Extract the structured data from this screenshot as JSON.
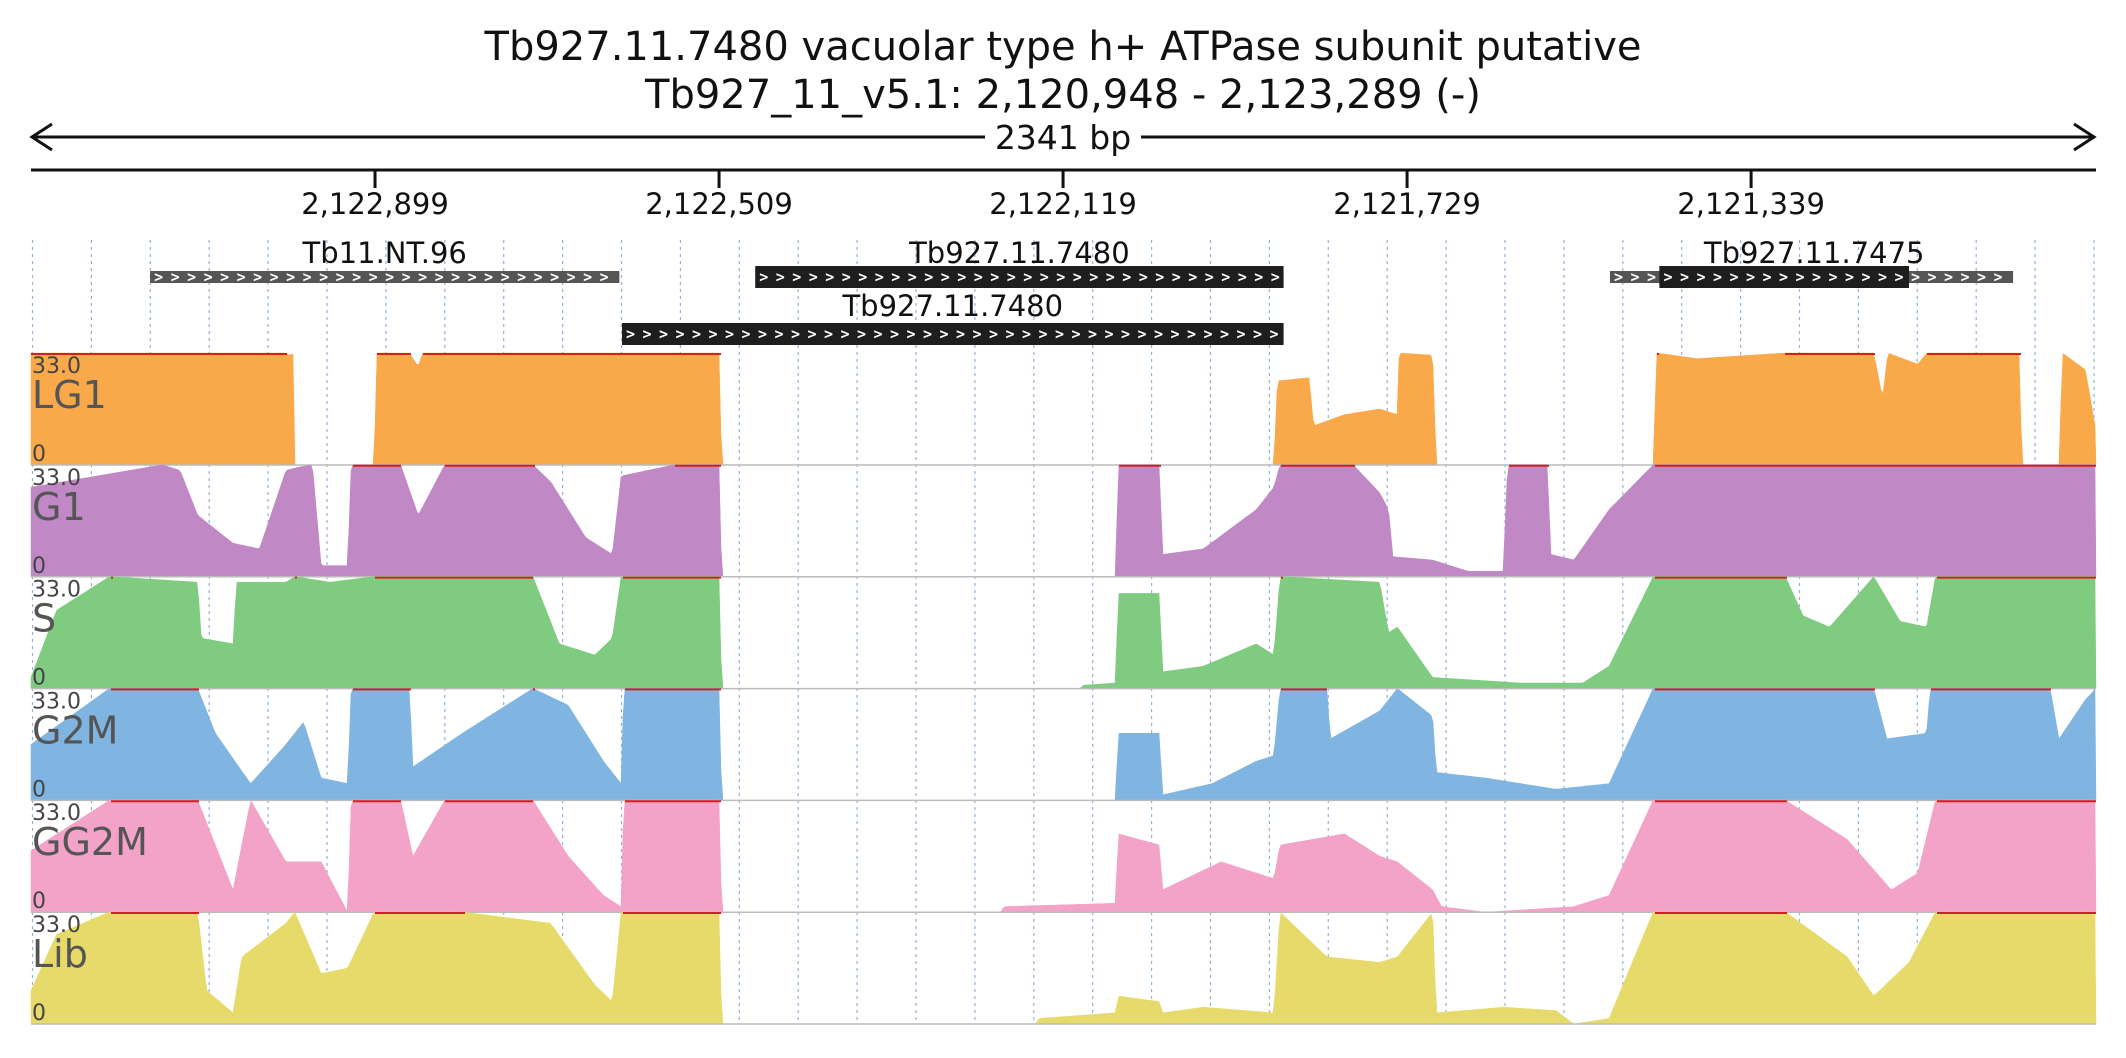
{
  "title": {
    "line1": "Tb927.11.7480  vacuolar type h+ ATPase subunit  putative",
    "line2": "Tb927_11_v5.1: 2,120,948 - 2,123,289 (-)"
  },
  "scale": {
    "label": "2341 bp"
  },
  "axis": {
    "start": 2123289,
    "end": 2120948,
    "ticks": [
      {
        "pos": 2122899,
        "label": "2,122,899"
      },
      {
        "pos": 2122509,
        "label": "2,122,509"
      },
      {
        "pos": 2122119,
        "label": "2,122,119"
      },
      {
        "pos": 2121729,
        "label": "2,121,729"
      },
      {
        "pos": 2121339,
        "label": "2,121,339"
      }
    ]
  },
  "genes": [
    {
      "id": "g1",
      "label": "Tb11.NT.96",
      "row": 0,
      "style": "ncrna",
      "start": 2123154,
      "end": 2122622
    },
    {
      "id": "g2",
      "label": "Tb927.11.7480",
      "row": 0,
      "style": "cds",
      "start": 2122468,
      "end": 2121869
    },
    {
      "id": "g3",
      "label": "Tb927.11.7480",
      "row": 1,
      "style": "cds",
      "start": 2122619,
      "end": 2121869
    },
    {
      "id": "g4",
      "label": "Tb927.11.7475",
      "row": 0,
      "style": "utr",
      "start": 2121499,
      "end": 2121042,
      "core_start": 2121443,
      "core_end": 2121160
    }
  ],
  "tracks": [
    {
      "name": "LG1",
      "color": "#f9a94a",
      "max": "33.0",
      "min": "0",
      "profile": [
        [
          2123289,
          1
        ],
        [
          2123000,
          1
        ],
        [
          2122996,
          0.98
        ],
        [
          2122990,
          1
        ],
        [
          2122993,
          0
        ],
        [
          2122900,
          0
        ],
        [
          2122897,
          1
        ],
        [
          2122860,
          1
        ],
        [
          2122850,
          0.88
        ],
        [
          2122845,
          1
        ],
        [
          2122800,
          1
        ],
        [
          2122509,
          1
        ],
        [
          2122506,
          0
        ],
        [
          2121880,
          0
        ],
        [
          2121876,
          0.75
        ],
        [
          2121840,
          0.78
        ],
        [
          2121835,
          0.35
        ],
        [
          2121800,
          0.45
        ],
        [
          2121760,
          0.5
        ],
        [
          2121740,
          0.45
        ],
        [
          2121738,
          1
        ],
        [
          2121700,
          0.98
        ],
        [
          2121696,
          0
        ],
        [
          2121450,
          0
        ],
        [
          2121446,
          1
        ],
        [
          2121400,
          0.95
        ],
        [
          2121300,
          1
        ],
        [
          2121200,
          1
        ],
        [
          2121190,
          0.6
        ],
        [
          2121184,
          1
        ],
        [
          2121150,
          0.9
        ],
        [
          2121140,
          1
        ],
        [
          2121035,
          1
        ],
        [
          2121032,
          0
        ],
        [
          2120990,
          0
        ],
        [
          2120986,
          1
        ],
        [
          2120960,
          0.85
        ],
        [
          2120948,
          0.3
        ]
      ]
    },
    {
      "name": "G1",
      "color": "#c088c5",
      "max": "33.0",
      "min": "0",
      "profile": [
        [
          2123289,
          0.8
        ],
        [
          2123140,
          1
        ],
        [
          2123120,
          0.95
        ],
        [
          2123100,
          0.55
        ],
        [
          2123060,
          0.3
        ],
        [
          2123030,
          0.25
        ],
        [
          2123000,
          0.95
        ],
        [
          2122985,
          0.98
        ],
        [
          2122970,
          1
        ],
        [
          2122960,
          0.1
        ],
        [
          2122930,
          0.1
        ],
        [
          2122926,
          1
        ],
        [
          2122870,
          1
        ],
        [
          2122850,
          0.55
        ],
        [
          2122820,
          1
        ],
        [
          2122720,
          1
        ],
        [
          2122700,
          0.85
        ],
        [
          2122660,
          0.35
        ],
        [
          2122630,
          0.2
        ],
        [
          2122620,
          0.9
        ],
        [
          2122560,
          1
        ],
        [
          2122509,
          1
        ],
        [
          2122506,
          0
        ],
        [
          2122060,
          0
        ],
        [
          2122056,
          1
        ],
        [
          2122010,
          1
        ],
        [
          2122006,
          0.2
        ],
        [
          2121960,
          0.25
        ],
        [
          2121900,
          0.6
        ],
        [
          2121880,
          0.8
        ],
        [
          2121873,
          1
        ],
        [
          2121790,
          1
        ],
        [
          2121760,
          0.75
        ],
        [
          2121750,
          0.6
        ],
        [
          2121745,
          0.18
        ],
        [
          2121700,
          0.15
        ],
        [
          2121660,
          0.05
        ],
        [
          2121620,
          0.05
        ],
        [
          2121615,
          1
        ],
        [
          2121570,
          1
        ],
        [
          2121566,
          0.2
        ],
        [
          2121540,
          0.15
        ],
        [
          2121500,
          0.6
        ],
        [
          2121450,
          1
        ],
        [
          2121300,
          1
        ],
        [
          2120948,
          1
        ]
      ]
    },
    {
      "name": "S",
      "color": "#7fcb7f",
      "max": "33.0",
      "min": "0",
      "profile": [
        [
          2123289,
          0.1
        ],
        [
          2123260,
          0.7
        ],
        [
          2123200,
          1
        ],
        [
          2123100,
          0.95
        ],
        [
          2123096,
          0.45
        ],
        [
          2123060,
          0.4
        ],
        [
          2123056,
          0.95
        ],
        [
          2123000,
          0.95
        ],
        [
          2122990,
          1
        ],
        [
          2122950,
          0.95
        ],
        [
          2122900,
          1
        ],
        [
          2122720,
          1
        ],
        [
          2122690,
          0.4
        ],
        [
          2122650,
          0.3
        ],
        [
          2122630,
          0.45
        ],
        [
          2122620,
          1
        ],
        [
          2122509,
          1
        ],
        [
          2122506,
          0
        ],
        [
          2122100,
          0
        ],
        [
          2122096,
          0.03
        ],
        [
          2122060,
          0.05
        ],
        [
          2122056,
          0.85
        ],
        [
          2122010,
          0.85
        ],
        [
          2122006,
          0.15
        ],
        [
          2121960,
          0.2
        ],
        [
          2121900,
          0.4
        ],
        [
          2121880,
          0.3
        ],
        [
          2121873,
          1
        ],
        [
          2121760,
          0.95
        ],
        [
          2121750,
          0.5
        ],
        [
          2121740,
          0.55
        ],
        [
          2121700,
          0.1
        ],
        [
          2121600,
          0.05
        ],
        [
          2121530,
          0.05
        ],
        [
          2121500,
          0.2
        ],
        [
          2121450,
          1
        ],
        [
          2121300,
          1
        ],
        [
          2121280,
          0.65
        ],
        [
          2121250,
          0.55
        ],
        [
          2121200,
          1
        ],
        [
          2121170,
          0.6
        ],
        [
          2121140,
          0.55
        ],
        [
          2121130,
          1
        ],
        [
          2120948,
          1
        ]
      ]
    },
    {
      "name": "G2M",
      "color": "#7fb5e0",
      "max": "33.0",
      "min": "0",
      "profile": [
        [
          2123289,
          0.5
        ],
        [
          2123200,
          1
        ],
        [
          2123100,
          1
        ],
        [
          2123080,
          0.6
        ],
        [
          2123040,
          0.15
        ],
        [
          2123000,
          0.5
        ],
        [
          2122980,
          0.7
        ],
        [
          2122960,
          0.2
        ],
        [
          2122930,
          0.15
        ],
        [
          2122926,
          1
        ],
        [
          2122860,
          1
        ],
        [
          2122856,
          0.3
        ],
        [
          2122800,
          0.6
        ],
        [
          2122740,
          0.9
        ],
        [
          2122720,
          1
        ],
        [
          2122680,
          0.85
        ],
        [
          2122640,
          0.35
        ],
        [
          2122620,
          0.15
        ],
        [
          2122617,
          1
        ],
        [
          2122509,
          1
        ],
        [
          2122506,
          0
        ],
        [
          2122060,
          0
        ],
        [
          2122056,
          0.6
        ],
        [
          2122010,
          0.6
        ],
        [
          2122006,
          0.05
        ],
        [
          2121950,
          0.15
        ],
        [
          2121900,
          0.35
        ],
        [
          2121880,
          0.4
        ],
        [
          2121873,
          1
        ],
        [
          2121820,
          1
        ],
        [
          2121816,
          0.55
        ],
        [
          2121760,
          0.8
        ],
        [
          2121740,
          1
        ],
        [
          2121700,
          0.75
        ],
        [
          2121696,
          0.25
        ],
        [
          2121640,
          0.2
        ],
        [
          2121560,
          0.1
        ],
        [
          2121500,
          0.15
        ],
        [
          2121450,
          1
        ],
        [
          2121400,
          1
        ],
        [
          2121300,
          1
        ],
        [
          2121200,
          1
        ],
        [
          2121185,
          0.55
        ],
        [
          2121140,
          0.6
        ],
        [
          2121136,
          1
        ],
        [
          2121000,
          1
        ],
        [
          2120990,
          0.55
        ],
        [
          2120960,
          0.9
        ],
        [
          2120948,
          1
        ]
      ]
    },
    {
      "name": "GG2M",
      "color": "#f4a3c8",
      "max": "33.0",
      "min": "0",
      "profile": [
        [
          2123289,
          0.55
        ],
        [
          2123200,
          1
        ],
        [
          2123100,
          1
        ],
        [
          2123060,
          0.2
        ],
        [
          2123040,
          1
        ],
        [
          2123000,
          0.45
        ],
        [
          2122960,
          0.45
        ],
        [
          2122930,
          0
        ],
        [
          2122926,
          1
        ],
        [
          2122870,
          1
        ],
        [
          2122856,
          0.5
        ],
        [
          2122820,
          1
        ],
        [
          2122720,
          1
        ],
        [
          2122680,
          0.5
        ],
        [
          2122640,
          0.15
        ],
        [
          2122620,
          0.05
        ],
        [
          2122617,
          1
        ],
        [
          2122509,
          1
        ],
        [
          2122506,
          0
        ],
        [
          2122190,
          0
        ],
        [
          2122186,
          0.05
        ],
        [
          2122060,
          0.08
        ],
        [
          2122056,
          0.7
        ],
        [
          2122010,
          0.6
        ],
        [
          2122006,
          0.2
        ],
        [
          2121940,
          0.45
        ],
        [
          2121900,
          0.35
        ],
        [
          2121880,
          0.3
        ],
        [
          2121873,
          0.6
        ],
        [
          2121800,
          0.7
        ],
        [
          2121760,
          0.5
        ],
        [
          2121740,
          0.45
        ],
        [
          2121700,
          0.2
        ],
        [
          2121690,
          0.05
        ],
        [
          2121640,
          0
        ],
        [
          2121540,
          0.05
        ],
        [
          2121500,
          0.15
        ],
        [
          2121450,
          1
        ],
        [
          2121300,
          1
        ],
        [
          2121230,
          0.65
        ],
        [
          2121180,
          0.2
        ],
        [
          2121150,
          0.35
        ],
        [
          2121130,
          1
        ],
        [
          2120948,
          1
        ]
      ]
    },
    {
      "name": "Lib",
      "color": "#e6db6a",
      "max": "33.0",
      "min": "0",
      "profile": [
        [
          2123289,
          0.3
        ],
        [
          2123260,
          0.8
        ],
        [
          2123200,
          1
        ],
        [
          2123100,
          1
        ],
        [
          2123090,
          0.3
        ],
        [
          2123060,
          0.1
        ],
        [
          2123050,
          0.6
        ],
        [
          2123000,
          0.9
        ],
        [
          2122990,
          1
        ],
        [
          2122960,
          0.45
        ],
        [
          2122930,
          0.5
        ],
        [
          2122900,
          1
        ],
        [
          2122800,
          1
        ],
        [
          2122700,
          0.9
        ],
        [
          2122650,
          0.35
        ],
        [
          2122630,
          0.2
        ],
        [
          2122620,
          1
        ],
        [
          2122509,
          1
        ],
        [
          2122506,
          0
        ],
        [
          2122150,
          0
        ],
        [
          2122146,
          0.05
        ],
        [
          2122060,
          0.1
        ],
        [
          2122056,
          0.25
        ],
        [
          2122010,
          0.2
        ],
        [
          2122006,
          0.1
        ],
        [
          2121960,
          0.15
        ],
        [
          2121880,
          0.1
        ],
        [
          2121873,
          1
        ],
        [
          2121820,
          0.6
        ],
        [
          2121760,
          0.55
        ],
        [
          2121740,
          0.6
        ],
        [
          2121700,
          1
        ],
        [
          2121696,
          0.1
        ],
        [
          2121620,
          0.15
        ],
        [
          2121560,
          0.12
        ],
        [
          2121540,
          0
        ],
        [
          2121500,
          0.05
        ],
        [
          2121450,
          1
        ],
        [
          2121300,
          1
        ],
        [
          2121230,
          0.6
        ],
        [
          2121200,
          0.25
        ],
        [
          2121160,
          0.55
        ],
        [
          2121130,
          1
        ],
        [
          2120948,
          1
        ]
      ]
    }
  ]
}
